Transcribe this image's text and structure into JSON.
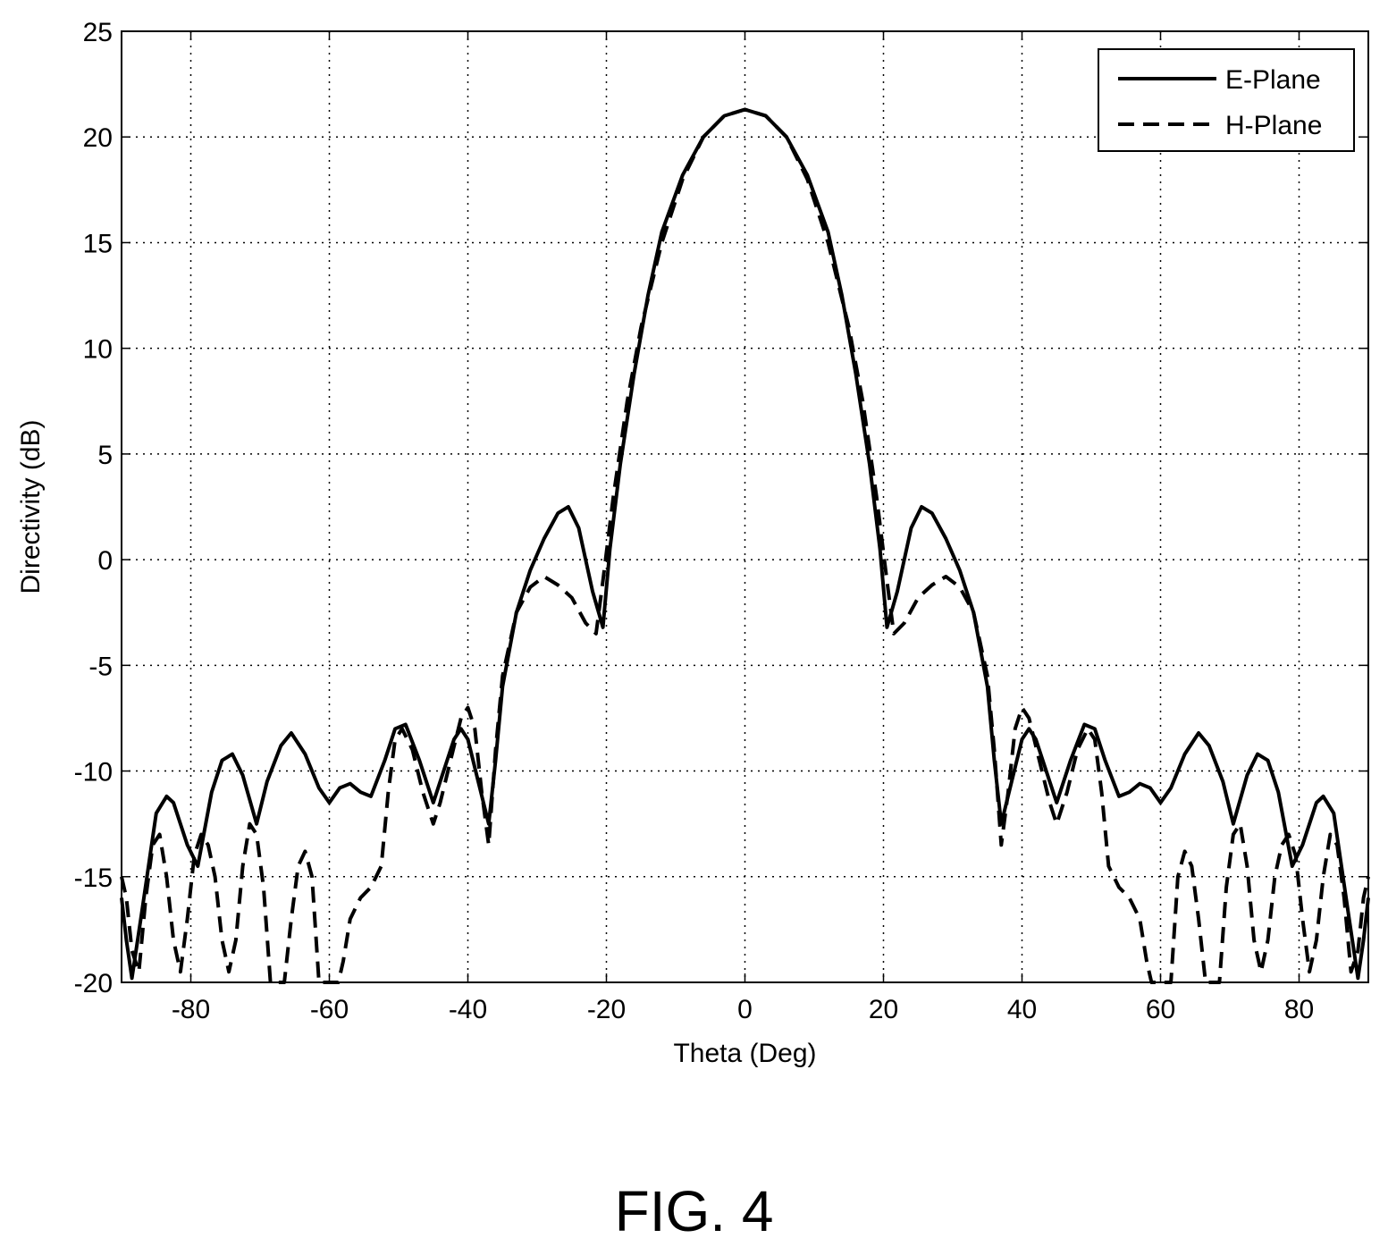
{
  "chart_data": {
    "type": "line",
    "xlabel": "Theta (Deg)",
    "ylabel": "Directivity (dB)",
    "xlim": [
      -90,
      90
    ],
    "ylim": [
      -20,
      25
    ],
    "xticks": [
      -80,
      -60,
      -40,
      -20,
      0,
      20,
      40,
      60,
      80
    ],
    "yticks": [
      -20,
      -15,
      -10,
      -5,
      0,
      5,
      10,
      15,
      20,
      25
    ],
    "grid": true,
    "legend_position": "top-right",
    "series": [
      {
        "name": "E-Plane",
        "style": "solid",
        "color": "#000000",
        "points": [
          [
            0,
            21.3
          ],
          [
            3,
            21.0
          ],
          [
            6,
            20.0
          ],
          [
            9,
            18.2
          ],
          [
            12,
            15.5
          ],
          [
            14,
            12.5
          ],
          [
            16,
            8.8
          ],
          [
            18,
            4.5
          ],
          [
            19.5,
            0.5
          ],
          [
            20.5,
            -3.2
          ],
          [
            22,
            -1.5
          ],
          [
            24,
            1.5
          ],
          [
            25.5,
            2.5
          ],
          [
            27,
            2.2
          ],
          [
            29,
            1.0
          ],
          [
            31,
            -0.5
          ],
          [
            33,
            -2.5
          ],
          [
            35,
            -6.0
          ],
          [
            36,
            -9.5
          ],
          [
            37,
            -12.5
          ],
          [
            38.5,
            -10.5
          ],
          [
            40,
            -8.5
          ],
          [
            41,
            -8.0
          ],
          [
            42,
            -8.5
          ],
          [
            44,
            -10.5
          ],
          [
            45,
            -11.5
          ],
          [
            47,
            -9.5
          ],
          [
            49,
            -7.8
          ],
          [
            50.5,
            -8.0
          ],
          [
            52,
            -9.5
          ],
          [
            54,
            -11.2
          ],
          [
            55.5,
            -11.0
          ],
          [
            57,
            -10.6
          ],
          [
            58.5,
            -10.8
          ],
          [
            60,
            -11.5
          ],
          [
            61.5,
            -10.8
          ],
          [
            63.5,
            -9.2
          ],
          [
            65.5,
            -8.2
          ],
          [
            67,
            -8.8
          ],
          [
            69,
            -10.5
          ],
          [
            70.5,
            -12.5
          ],
          [
            72.5,
            -10.2
          ],
          [
            74,
            -9.2
          ],
          [
            75.5,
            -9.5
          ],
          [
            77,
            -11.0
          ],
          [
            79,
            -14.5
          ],
          [
            80.5,
            -13.5
          ],
          [
            82.5,
            -11.5
          ],
          [
            83.5,
            -11.2
          ],
          [
            85,
            -12.0
          ],
          [
            87,
            -16.5
          ],
          [
            88.5,
            -19.8
          ],
          [
            89.3,
            -18.0
          ],
          [
            90,
            -16.0
          ]
        ]
      },
      {
        "name": "H-Plane",
        "style": "dashed",
        "color": "#000000",
        "points": [
          [
            0,
            21.3
          ],
          [
            3,
            21.0
          ],
          [
            6,
            20.0
          ],
          [
            9,
            18.0
          ],
          [
            12,
            15.0
          ],
          [
            15,
            11.0
          ],
          [
            17,
            7.5
          ],
          [
            19,
            3.0
          ],
          [
            20.5,
            -1.0
          ],
          [
            21.5,
            -3.5
          ],
          [
            23,
            -3.0
          ],
          [
            25,
            -1.8
          ],
          [
            27,
            -1.2
          ],
          [
            29,
            -0.8
          ],
          [
            31,
            -1.3
          ],
          [
            33,
            -2.5
          ],
          [
            35,
            -5.5
          ],
          [
            36,
            -9.0
          ],
          [
            37,
            -13.5
          ],
          [
            38,
            -11.0
          ],
          [
            39,
            -8.0
          ],
          [
            40,
            -7.0
          ],
          [
            41,
            -7.5
          ],
          [
            42.5,
            -9.5
          ],
          [
            44,
            -11.5
          ],
          [
            45,
            -12.5
          ],
          [
            46.5,
            -11.0
          ],
          [
            48,
            -9.0
          ],
          [
            49.5,
            -8.0
          ],
          [
            50.5,
            -8.5
          ],
          [
            51.5,
            -11.0
          ],
          [
            52.5,
            -14.5
          ],
          [
            54,
            -15.5
          ],
          [
            55.5,
            -16.0
          ],
          [
            57,
            -17.0
          ],
          [
            58,
            -19.0
          ],
          [
            58.7,
            -20.0
          ],
          [
            61.5,
            -20.0
          ],
          [
            62.5,
            -15.0
          ],
          [
            63.5,
            -13.8
          ],
          [
            64.5,
            -14.5
          ],
          [
            65.5,
            -17.0
          ],
          [
            66.5,
            -20.0
          ],
          [
            68.5,
            -20.0
          ],
          [
            69.5,
            -15.5
          ],
          [
            70.5,
            -13.0
          ],
          [
            71.5,
            -12.5
          ],
          [
            72.5,
            -14.5
          ],
          [
            73.5,
            -18.0
          ],
          [
            74.5,
            -19.5
          ],
          [
            75.5,
            -18.0
          ],
          [
            76.5,
            -15.0
          ],
          [
            77.5,
            -13.5
          ],
          [
            78.5,
            -13.0
          ],
          [
            79.5,
            -14.0
          ],
          [
            80.5,
            -17.0
          ],
          [
            81.5,
            -19.5
          ],
          [
            82.5,
            -18.0
          ],
          [
            83.5,
            -15.0
          ],
          [
            84.5,
            -13.0
          ],
          [
            85.5,
            -13.5
          ],
          [
            86.5,
            -16.0
          ],
          [
            87.5,
            -19.5
          ],
          [
            88.5,
            -18.5
          ],
          [
            89.3,
            -16.0
          ],
          [
            90,
            -15.0
          ]
        ]
      }
    ]
  },
  "caption": "FIG. 4"
}
